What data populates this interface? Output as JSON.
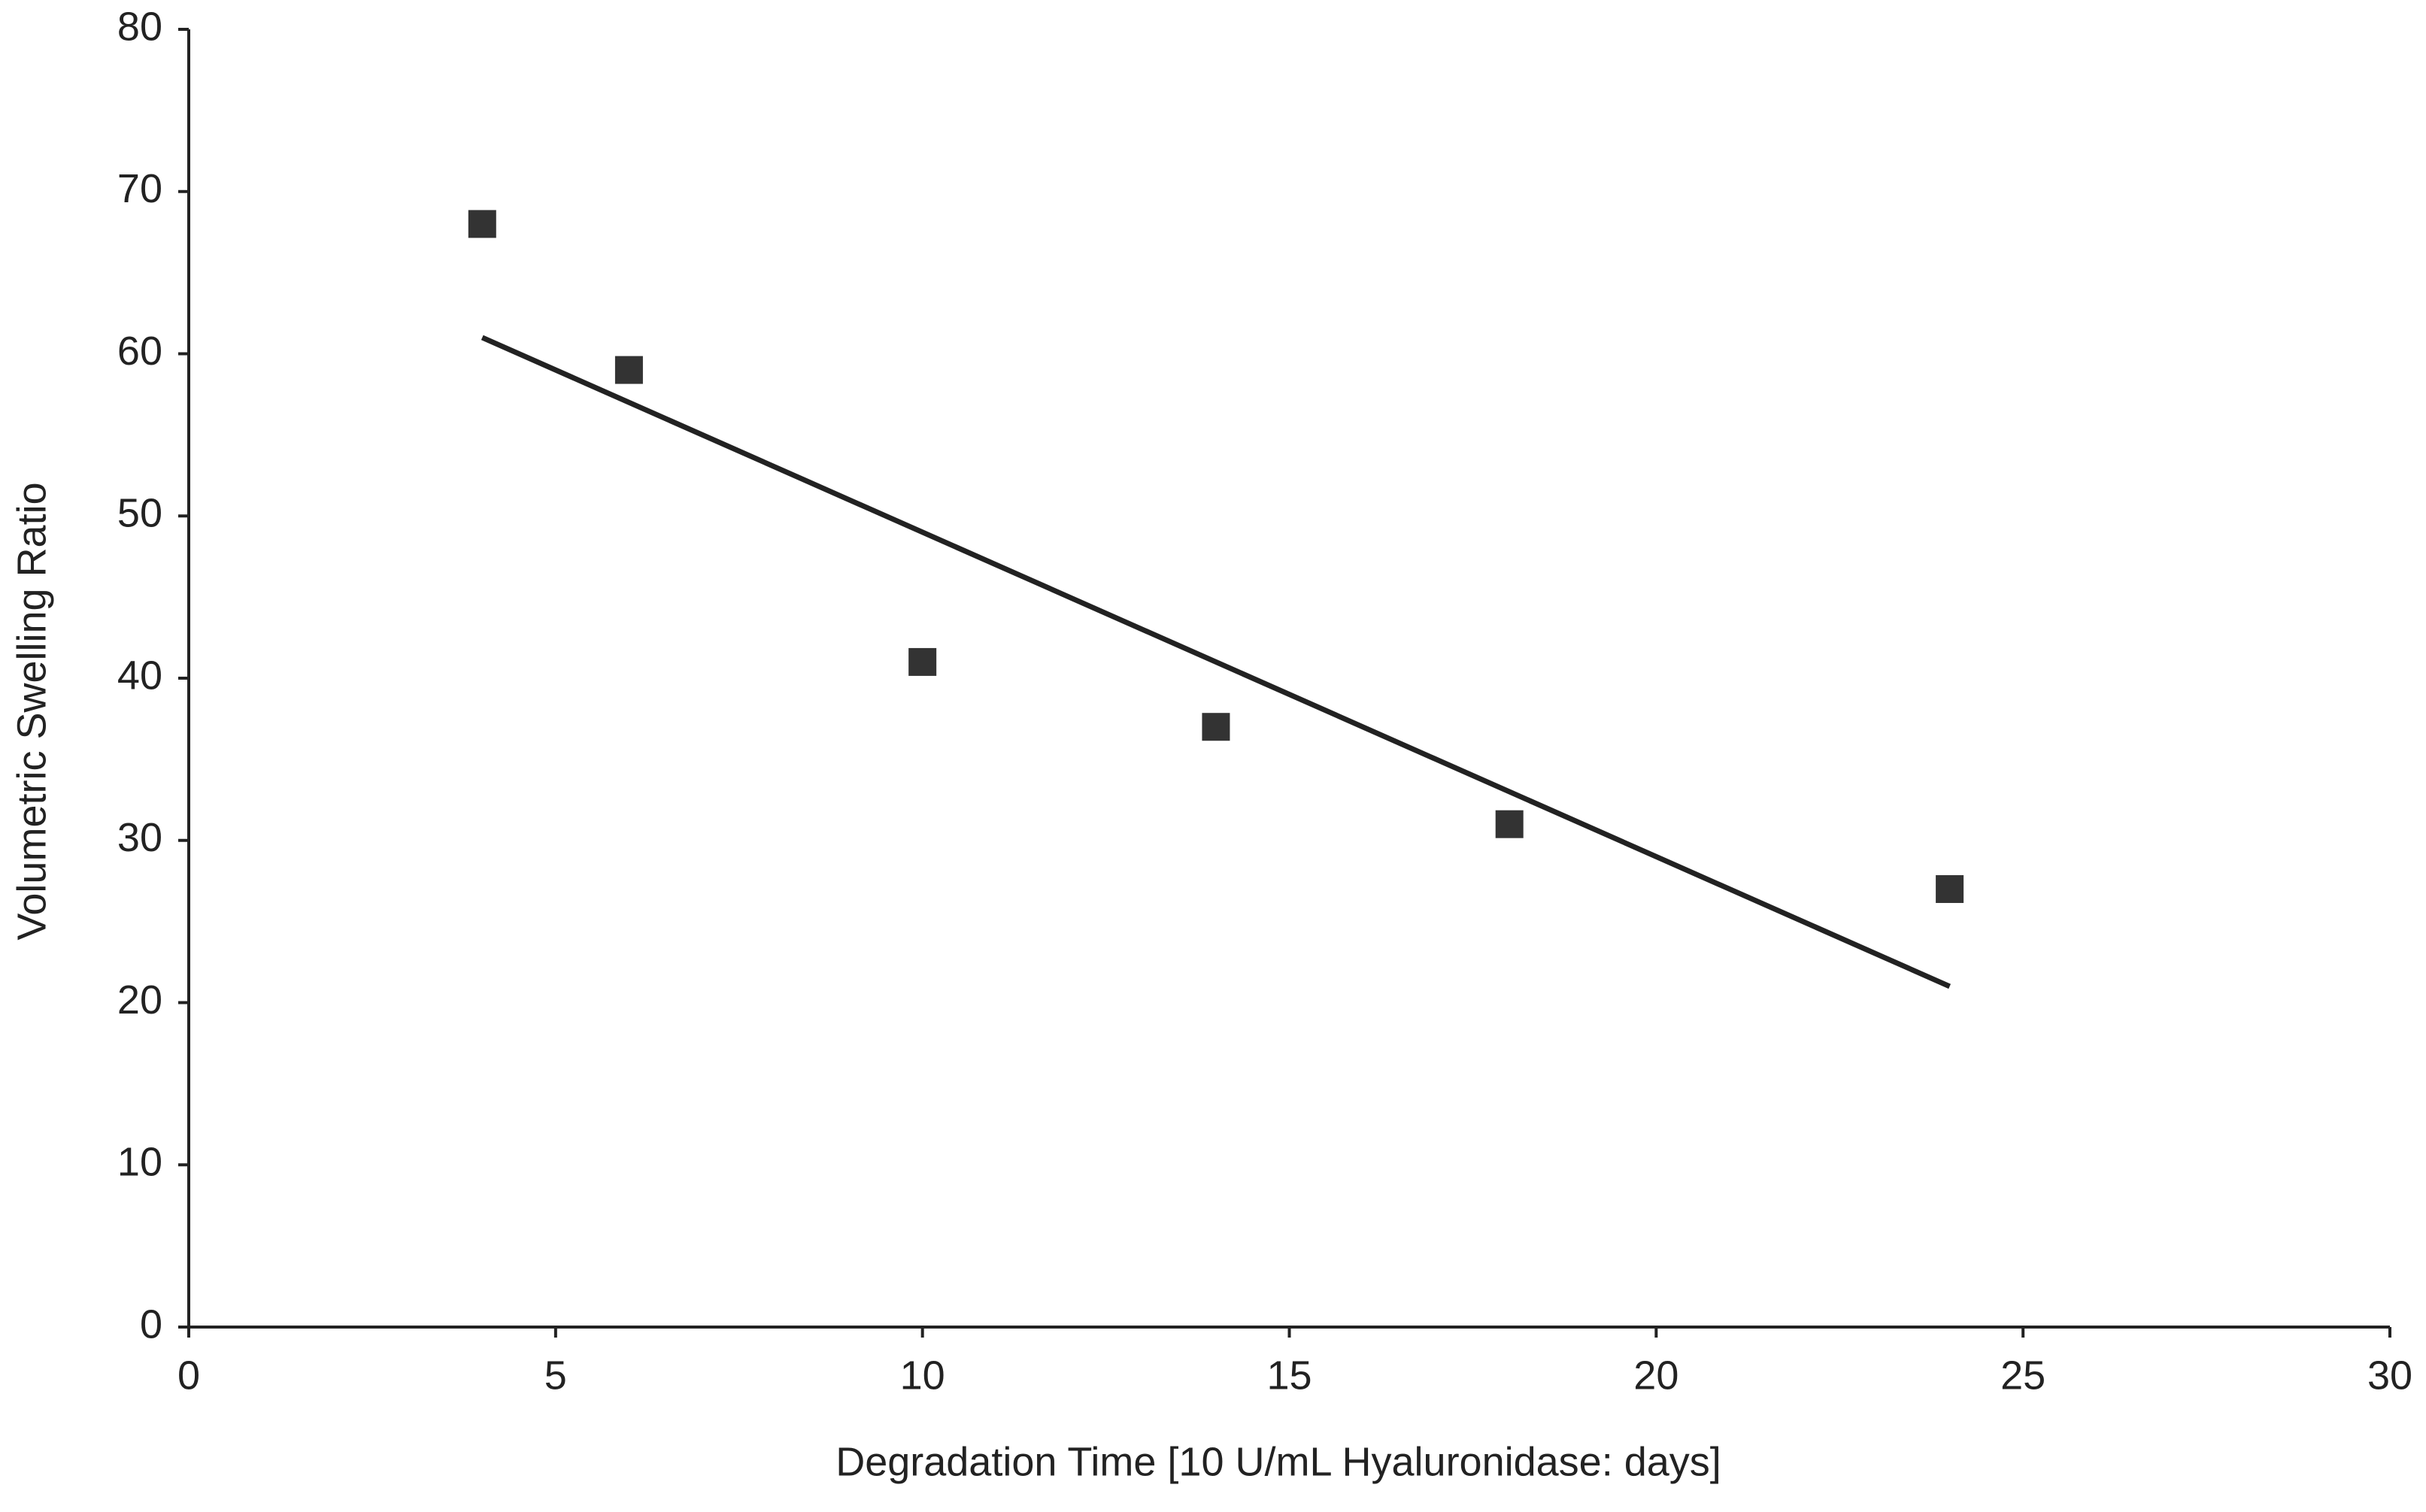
{
  "chart_data": {
    "type": "scatter",
    "x_label": "Degradation Time [10 U/mL Hyaluronidase: days]",
    "y_label": "Volumetric Swelling Ratio",
    "x": [
      4,
      6,
      10,
      14,
      18,
      24
    ],
    "values": [
      68,
      59,
      41,
      37,
      31,
      27
    ],
    "color": "#333333",
    "trendline": {
      "x": [
        4,
        24
      ],
      "values": [
        61,
        21
      ],
      "color": "#222222"
    },
    "xlim": [
      0,
      30
    ],
    "xticks": [
      0,
      5,
      10,
      15,
      20,
      25,
      30
    ],
    "ylim": [
      0,
      80
    ],
    "yticks": [
      0,
      10,
      20,
      30,
      40,
      50,
      60,
      70,
      80
    ],
    "grid": false
  }
}
